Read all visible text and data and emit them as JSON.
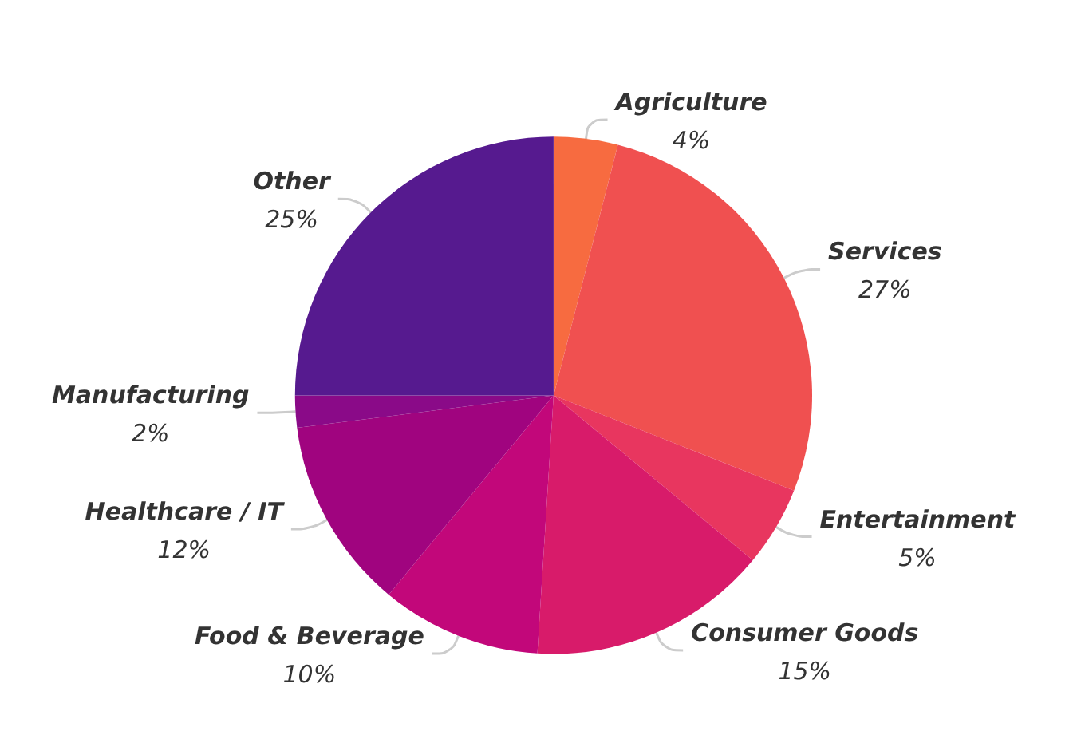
{
  "chart_data": {
    "type": "pie",
    "categories": [
      "Agriculture",
      "Services",
      "Entertainment",
      "Consumer Goods",
      "Food & Beverage",
      "Healthcare / IT",
      "Manufacturing",
      "Other"
    ],
    "values": [
      4,
      27,
      5,
      15,
      10,
      12,
      2,
      25
    ],
    "value_labels": [
      "4%",
      "27%",
      "5%",
      "15%",
      "10%",
      "12%",
      "2%",
      "25%"
    ],
    "colors": [
      "#f76b40",
      "#f05050",
      "#e8365f",
      "#d81b6a",
      "#c2077a",
      "#a0047f",
      "#8a0a88",
      "#561a8f"
    ],
    "legend": false
  }
}
